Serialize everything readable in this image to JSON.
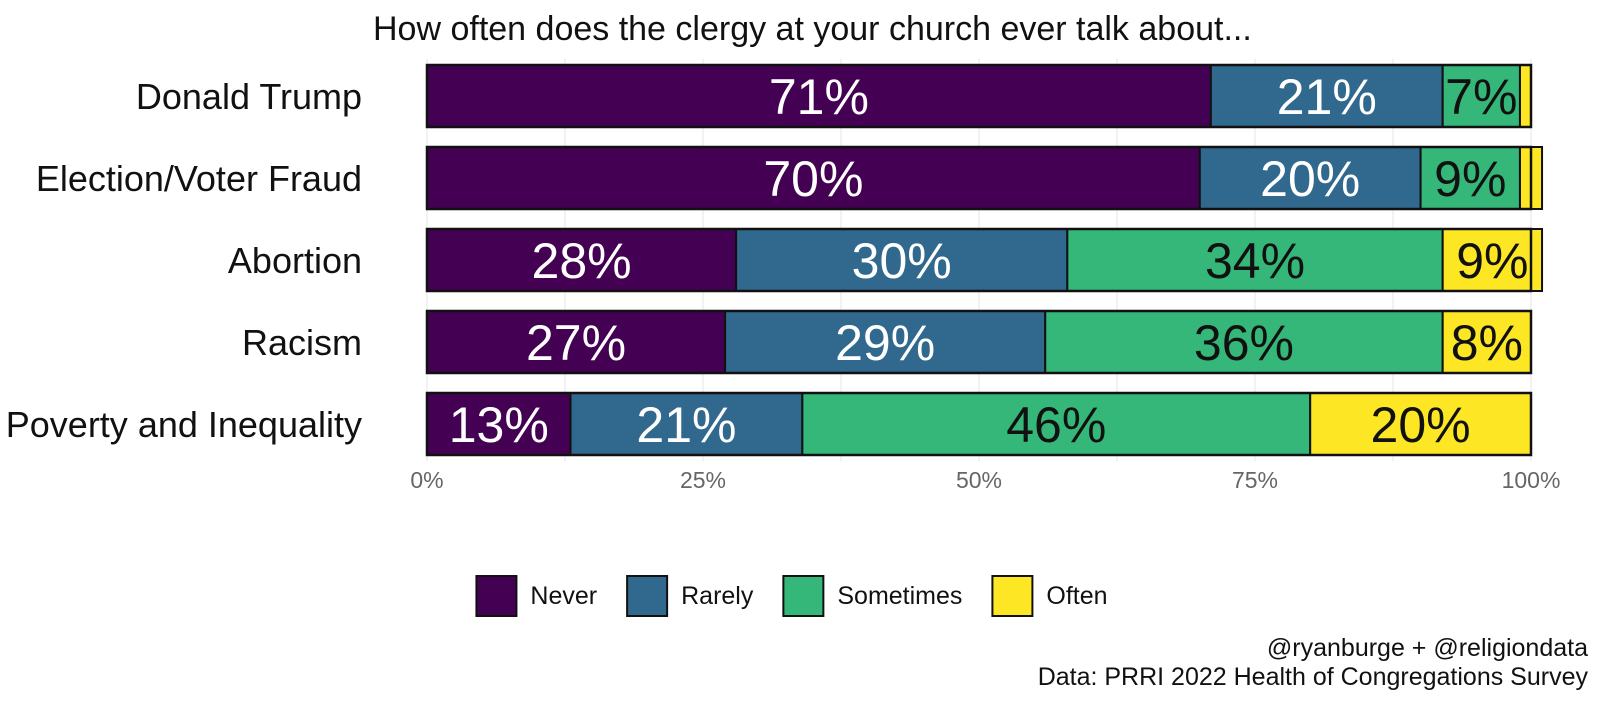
{
  "chart_data": {
    "type": "bar",
    "orientation": "horizontal",
    "stacked": true,
    "title": "How often does the clergy at your church ever talk about...",
    "categories": [
      "Donald Trump",
      "Election/Voter Fraud",
      "Abortion",
      "Racism",
      "Poverty and Inequality"
    ],
    "series": [
      {
        "name": "Never",
        "color": "#440154",
        "label_color": "#ffffff",
        "values": [
          71,
          70,
          28,
          27,
          13
        ]
      },
      {
        "name": "Rarely",
        "color": "#31688e",
        "label_color": "#ffffff",
        "values": [
          21,
          20,
          30,
          29,
          21
        ]
      },
      {
        "name": "Sometimes",
        "color": "#35b779",
        "label_color": "#111111",
        "values": [
          7,
          9,
          34,
          36,
          46
        ]
      },
      {
        "name": "Often",
        "color": "#fde725",
        "label_color": "#111111",
        "values": [
          1,
          2,
          9,
          8,
          20
        ]
      }
    ],
    "labels": [
      [
        "71%",
        "21%",
        "7%",
        ""
      ],
      [
        "70%",
        "20%",
        "9%",
        ""
      ],
      [
        "28%",
        "30%",
        "34%",
        "9%"
      ],
      [
        "27%",
        "29%",
        "36%",
        "8%"
      ],
      [
        "13%",
        "21%",
        "46%",
        "20%"
      ]
    ],
    "xlim": [
      0,
      100
    ],
    "x_ticks": [
      0,
      25,
      50,
      75,
      100
    ],
    "x_tick_labels": [
      "0%",
      "25%",
      "50%",
      "75%",
      "100%"
    ],
    "xlabel": "",
    "ylabel": "",
    "grid": true,
    "legend_position": "bottom"
  },
  "caption": {
    "line1": "@ryanburge + @religiondata",
    "line2": "Data: PRRI 2022 Health of Congregations Survey"
  }
}
